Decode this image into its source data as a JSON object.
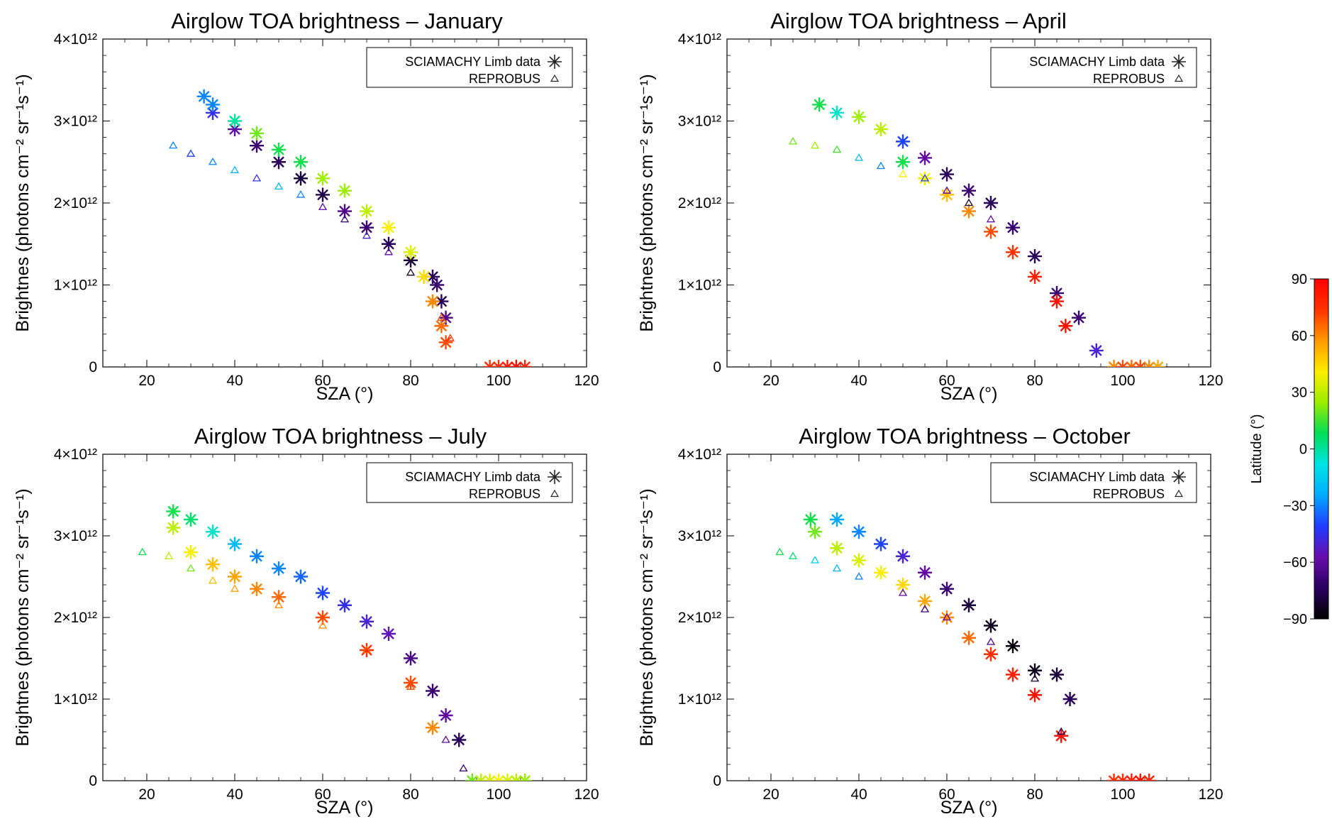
{
  "figure": {
    "colorbar": {
      "label": "Latitude (°)",
      "ticks": [
        90,
        60,
        30,
        0,
        -30,
        -60,
        -90
      ],
      "tick_labels": [
        "90",
        "60",
        "30",
        "0",
        "−30",
        "−60",
        "−90"
      ],
      "range": [
        -90,
        90
      ],
      "colormap": [
        "#000000",
        "#2a0060",
        "#6a0dad",
        "#1f3cff",
        "#00aaff",
        "#00e5e5",
        "#00dd55",
        "#9aee00",
        "#ffee00",
        "#ff9900",
        "#ff3300",
        "#ff0000"
      ]
    }
  },
  "chart_data": [
    {
      "type": "scatter",
      "title": "Airglow TOA brightness – January",
      "xlabel": "SZA (°)",
      "ylabel": "Brightnes (photons cm⁻² sr⁻¹s⁻¹)",
      "xlim": [
        10,
        120
      ],
      "ylim": [
        0,
        4000000000000.0
      ],
      "x_ticks": [
        20,
        40,
        60,
        80,
        100,
        120
      ],
      "y_ticks": [
        {
          "value": 0,
          "label": "0"
        },
        {
          "value": 1000000000000.0,
          "label": "1×10¹²"
        },
        {
          "value": 2000000000000.0,
          "label": "2×10¹²"
        },
        {
          "value": 3000000000000.0,
          "label": "3×10¹²"
        },
        {
          "value": 4000000000000.0,
          "label": "4×10¹²"
        }
      ],
      "legend": {
        "location": "upper-right",
        "entries": [
          {
            "label": "SCIAMACHY Limb data",
            "marker": "asterisk"
          },
          {
            "label": "REPROBUS",
            "marker": "triangle"
          }
        ]
      },
      "series": [
        {
          "name": "SCIAMACHY Limb data",
          "marker": "asterisk",
          "lat": [
            -30,
            -45,
            -60,
            -70,
            -75,
            -80,
            -78,
            -65,
            -70,
            -75,
            -80,
            -75,
            -70,
            -75,
            -65
          ],
          "x": [
            33,
            35,
            40,
            45,
            50,
            55,
            60,
            65,
            70,
            75,
            80,
            85,
            86,
            87,
            88
          ],
          "y": [
            3300000000000.0,
            3100000000000.0,
            2900000000000.0,
            2700000000000.0,
            2500000000000.0,
            2300000000000.0,
            2100000000000.0,
            1900000000000.0,
            1700000000000.0,
            1500000000000.0,
            1300000000000.0,
            1100000000000.0,
            1000000000000.0,
            800000000000.0,
            600000000000.0
          ]
        },
        {
          "name": "SCIAMACHY Limb data",
          "marker": "asterisk",
          "lat": [
            -30,
            0,
            20,
            10,
            10,
            25,
            25,
            30,
            40,
            35,
            45,
            60,
            65,
            70
          ],
          "x": [
            35,
            40,
            45,
            50,
            55,
            60,
            65,
            70,
            75,
            80,
            83,
            85,
            87,
            88
          ],
          "y": [
            3200000000000.0,
            3000000000000.0,
            2850000000000.0,
            2650000000000.0,
            2500000000000.0,
            2300000000000.0,
            2150000000000.0,
            1900000000000.0,
            1700000000000.0,
            1400000000000.0,
            1100000000000.0,
            800000000000.0,
            500000000000.0,
            300000000000.0
          ]
        },
        {
          "name": "SCIAMACHY Limb data",
          "marker": "asterisk",
          "lat": [
            75,
            75,
            80,
            85,
            78
          ],
          "x": [
            98,
            100,
            102,
            104,
            106
          ],
          "y": [
            0,
            0,
            0,
            0,
            0
          ]
        },
        {
          "name": "REPROBUS",
          "marker": "triangle",
          "lat": [
            -30,
            -40,
            -30,
            -20,
            -45,
            -20,
            -30,
            -60,
            -70,
            -50,
            -60,
            -85,
            60,
            70,
            75
          ],
          "x": [
            26,
            30,
            35,
            40,
            45,
            50,
            55,
            60,
            65,
            70,
            75,
            80,
            85,
            87,
            89
          ],
          "y": [
            2700000000000.0,
            2600000000000.0,
            2500000000000.0,
            2400000000000.0,
            2300000000000.0,
            2200000000000.0,
            2100000000000.0,
            1950000000000.0,
            1800000000000.0,
            1600000000000.0,
            1400000000000.0,
            1150000000000.0,
            800000000000.0,
            600000000000.0,
            350000000000.0
          ]
        }
      ]
    },
    {
      "type": "scatter",
      "title": "Airglow TOA brightness –  April",
      "xlabel": "SZA (°)",
      "ylabel": "Brightnes (photons cm⁻² sr⁻¹s⁻¹)",
      "xlim": [
        10,
        120
      ],
      "ylim": [
        0,
        4000000000000.0
      ],
      "x_ticks": [
        20,
        40,
        60,
        80,
        100,
        120
      ],
      "y_ticks": [
        {
          "value": 0,
          "label": "0"
        },
        {
          "value": 1000000000000.0,
          "label": "1×10¹²"
        },
        {
          "value": 2000000000000.0,
          "label": "2×10¹²"
        },
        {
          "value": 3000000000000.0,
          "label": "3×10¹²"
        },
        {
          "value": 4000000000000.0,
          "label": "4×10¹²"
        }
      ],
      "legend": {
        "location": "upper-right",
        "entries": [
          {
            "label": "SCIAMACHY Limb data",
            "marker": "asterisk"
          },
          {
            "label": "REPROBUS",
            "marker": "triangle"
          }
        ]
      },
      "series": [
        {
          "name": "SCIAMACHY Limb data",
          "marker": "asterisk",
          "lat": [
            10,
            -5,
            25,
            30,
            -40,
            -60,
            -75,
            -70,
            -75,
            -70,
            -75,
            -70
          ],
          "x": [
            31,
            35,
            40,
            45,
            50,
            55,
            60,
            65,
            70,
            75,
            80,
            85
          ],
          "y": [
            3200000000000.0,
            3100000000000.0,
            3050000000000.0,
            2900000000000.0,
            2750000000000.0,
            2550000000000.0,
            2350000000000.0,
            2150000000000.0,
            2000000000000.0,
            1700000000000.0,
            1350000000000.0,
            900000000000.0
          ]
        },
        {
          "name": "SCIAMACHY Limb data",
          "marker": "asterisk",
          "lat": [
            10,
            40,
            50,
            60,
            70,
            75,
            80,
            85,
            85
          ],
          "x": [
            50,
            55,
            60,
            65,
            70,
            75,
            80,
            85,
            87
          ],
          "y": [
            2500000000000.0,
            2300000000000.0,
            2100000000000.0,
            1900000000000.0,
            1650000000000.0,
            1400000000000.0,
            1100000000000.0,
            800000000000.0,
            500000000000.0
          ]
        },
        {
          "name": "SCIAMACHY Limb data",
          "marker": "asterisk",
          "lat": [
            -70,
            -50
          ],
          "x": [
            90,
            94
          ],
          "y": [
            600000000000.0,
            200000000000.0
          ]
        },
        {
          "name": "SCIAMACHY Limb data",
          "marker": "asterisk",
          "lat": [
            60,
            70,
            65,
            70,
            60,
            55
          ],
          "x": [
            98,
            100,
            102,
            104,
            106,
            108
          ],
          "y": [
            0,
            0,
            0,
            0,
            0,
            0
          ]
        },
        {
          "name": "REPROBUS",
          "marker": "triangle",
          "lat": [
            20,
            25,
            15,
            -20,
            -30,
            40,
            -40,
            -60,
            -80,
            -60
          ],
          "x": [
            25,
            30,
            35,
            40,
            45,
            50,
            55,
            60,
            65,
            70
          ],
          "y": [
            2750000000000.0,
            2700000000000.0,
            2650000000000.0,
            2550000000000.0,
            2450000000000.0,
            2350000000000.0,
            2300000000000.0,
            2150000000000.0,
            2000000000000.0,
            1800000000000.0
          ]
        }
      ]
    },
    {
      "type": "scatter",
      "title": "Airglow TOA brightness – July",
      "xlabel": "SZA (°)",
      "ylabel": "Brightnes (photons cm⁻² sr⁻¹s⁻¹)",
      "xlim": [
        10,
        120
      ],
      "ylim": [
        0,
        4000000000000.0
      ],
      "x_ticks": [
        20,
        40,
        60,
        80,
        100,
        120
      ],
      "y_ticks": [
        {
          "value": 0,
          "label": "0"
        },
        {
          "value": 1000000000000.0,
          "label": "1×10¹²"
        },
        {
          "value": 2000000000000.0,
          "label": "2×10¹²"
        },
        {
          "value": 3000000000000.0,
          "label": "3×10¹²"
        },
        {
          "value": 4000000000000.0,
          "label": "4×10¹²"
        }
      ],
      "legend": {
        "location": "upper-right",
        "entries": [
          {
            "label": "SCIAMACHY Limb data",
            "marker": "asterisk"
          },
          {
            "label": "REPROBUS",
            "marker": "triangle"
          }
        ]
      },
      "series": [
        {
          "name": "SCIAMACHY Limb data",
          "marker": "asterisk",
          "lat": [
            10,
            5,
            -5,
            -20,
            -30,
            -30,
            -35,
            -40,
            -45,
            -50,
            -55,
            -65,
            -70
          ],
          "x": [
            26,
            30,
            35,
            40,
            45,
            50,
            55,
            60,
            65,
            70,
            75,
            80,
            85
          ],
          "y": [
            3300000000000.0,
            3200000000000.0,
            3050000000000.0,
            2900000000000.0,
            2750000000000.0,
            2600000000000.0,
            2500000000000.0,
            2300000000000.0,
            2150000000000.0,
            1950000000000.0,
            1800000000000.0,
            1500000000000.0,
            1100000000000.0
          ]
        },
        {
          "name": "SCIAMACHY Limb data",
          "marker": "asterisk",
          "lat": [
            30,
            40,
            50,
            55,
            60,
            65,
            70,
            75,
            70,
            60
          ],
          "x": [
            26,
            30,
            35,
            40,
            45,
            50,
            60,
            70,
            80,
            85
          ],
          "y": [
            3100000000000.0,
            2800000000000.0,
            2650000000000.0,
            2500000000000.0,
            2350000000000.0,
            2250000000000.0,
            2000000000000.0,
            1600000000000.0,
            1200000000000.0,
            650000000000.0
          ]
        },
        {
          "name": "SCIAMACHY Limb data",
          "marker": "asterisk",
          "lat": [
            -60,
            -75
          ],
          "x": [
            88,
            91
          ],
          "y": [
            800000000000.0,
            500000000000.0
          ]
        },
        {
          "name": "SCIAMACHY Limb data",
          "marker": "asterisk",
          "lat": [
            20,
            30,
            35,
            40,
            35,
            30,
            25
          ],
          "x": [
            94,
            96,
            98,
            100,
            102,
            104,
            106
          ],
          "y": [
            0,
            0,
            0,
            0,
            0,
            0,
            0
          ]
        },
        {
          "name": "REPROBUS",
          "marker": "triangle",
          "lat": [
            10,
            30,
            20,
            50,
            55,
            60,
            60,
            65,
            70,
            -60,
            -70
          ],
          "x": [
            19,
            25,
            30,
            35,
            40,
            50,
            60,
            70,
            80,
            88,
            92
          ],
          "y": [
            2800000000000.0,
            2750000000000.0,
            2600000000000.0,
            2450000000000.0,
            2350000000000.0,
            2150000000000.0,
            1900000000000.0,
            1600000000000.0,
            1150000000000.0,
            500000000000.0,
            150000000000.0
          ]
        }
      ]
    },
    {
      "type": "scatter",
      "title": "Airglow TOA brightness – October",
      "xlabel": "SZA (°)",
      "ylabel": "Brightnes (photons cm⁻² sr⁻¹s⁻¹)",
      "xlim": [
        10,
        120
      ],
      "ylim": [
        0,
        4000000000000.0
      ],
      "x_ticks": [
        20,
        40,
        60,
        80,
        100,
        120
      ],
      "y_ticks": [
        {
          "value": 0,
          "label": "0"
        },
        {
          "value": 1000000000000.0,
          "label": "1×10¹²"
        },
        {
          "value": 2000000000000.0,
          "label": "2×10¹²"
        },
        {
          "value": 3000000000000.0,
          "label": "3×10¹²"
        },
        {
          "value": 4000000000000.0,
          "label": "4×10¹²"
        }
      ],
      "legend": {
        "location": "upper-right",
        "entries": [
          {
            "label": "SCIAMACHY Limb data",
            "marker": "asterisk"
          },
          {
            "label": "REPROBUS",
            "marker": "triangle"
          }
        ]
      },
      "series": [
        {
          "name": "SCIAMACHY Limb data",
          "marker": "asterisk",
          "lat": [
            10,
            -25,
            -30,
            -40,
            -50,
            -60,
            -70,
            -80,
            -85,
            -88,
            -85
          ],
          "x": [
            29,
            35,
            40,
            45,
            50,
            55,
            60,
            65,
            70,
            75,
            80
          ],
          "y": [
            3200000000000.0,
            3200000000000.0,
            3050000000000.0,
            2900000000000.0,
            2750000000000.0,
            2550000000000.0,
            2350000000000.0,
            2150000000000.0,
            1900000000000.0,
            1650000000000.0,
            1350000000000.0
          ]
        },
        {
          "name": "SCIAMACHY Limb data",
          "marker": "asterisk",
          "lat": [
            20,
            30,
            35,
            40,
            45,
            55,
            60,
            65,
            75,
            80,
            85,
            85
          ],
          "x": [
            30,
            35,
            40,
            45,
            50,
            55,
            60,
            65,
            70,
            75,
            80,
            86
          ],
          "y": [
            3050000000000.0,
            2850000000000.0,
            2700000000000.0,
            2550000000000.0,
            2400000000000.0,
            2200000000000.0,
            2000000000000.0,
            1750000000000.0,
            1550000000000.0,
            1300000000000.0,
            1050000000000.0,
            550000000000.0
          ]
        },
        {
          "name": "SCIAMACHY Limb data",
          "marker": "asterisk",
          "lat": [
            -80,
            -75
          ],
          "x": [
            85,
            88
          ],
          "y": [
            1300000000000.0,
            1000000000000.0
          ]
        },
        {
          "name": "SCIAMACHY Limb data",
          "marker": "asterisk",
          "lat": [
            75,
            75,
            80,
            85,
            78
          ],
          "x": [
            98,
            100,
            102,
            104,
            106
          ],
          "y": [
            0,
            0,
            0,
            0,
            0
          ]
        },
        {
          "name": "REPROBUS",
          "marker": "triangle",
          "lat": [
            10,
            5,
            -15,
            -20,
            -30,
            -60,
            -70,
            -60,
            -65,
            -80,
            -75
          ],
          "x": [
            22,
            25,
            30,
            35,
            40,
            50,
            55,
            60,
            70,
            80,
            86
          ],
          "y": [
            2800000000000.0,
            2750000000000.0,
            2700000000000.0,
            2600000000000.0,
            2500000000000.0,
            2300000000000.0,
            2100000000000.0,
            2000000000000.0,
            1700000000000.0,
            1250000000000.0,
            600000000000.0
          ]
        }
      ]
    }
  ]
}
